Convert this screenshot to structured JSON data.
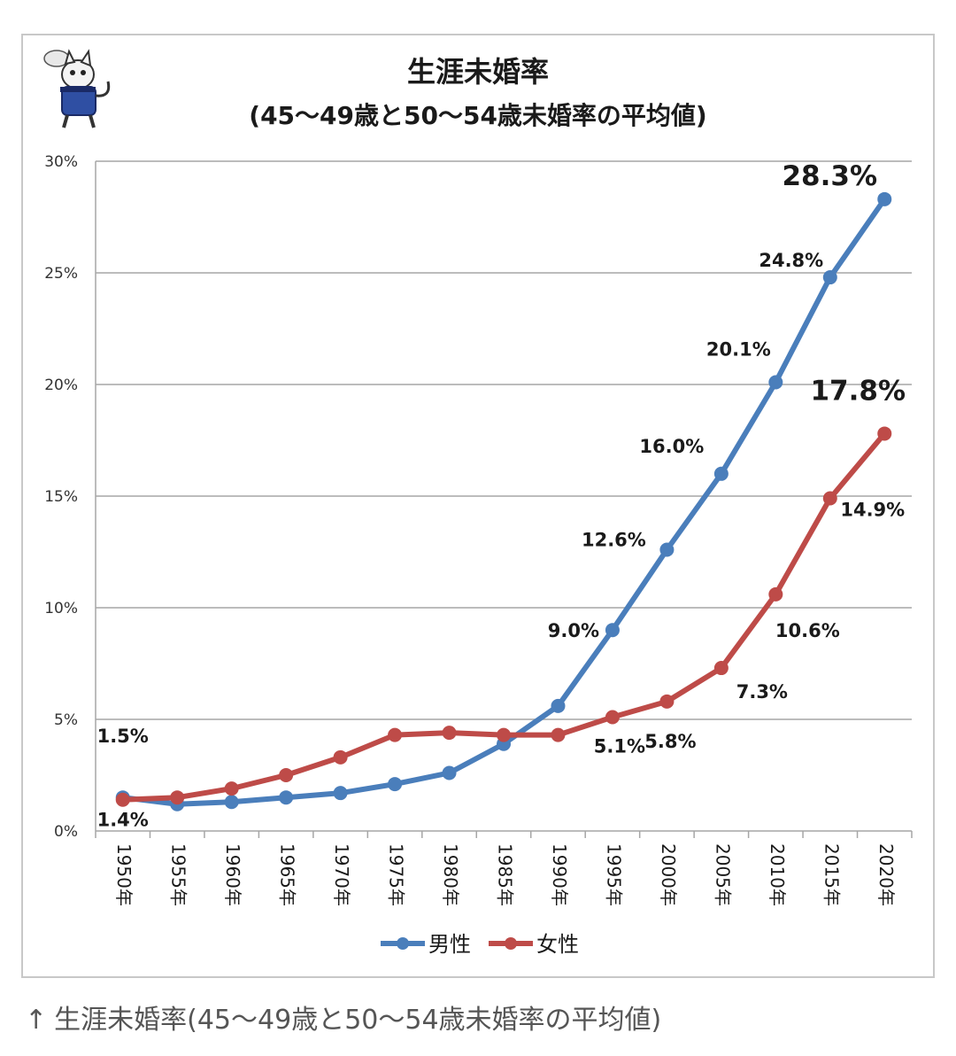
{
  "caption": {
    "arrow": "↑",
    "text": "生涯未婚率(45〜49歳と50〜54歳未婚率の平均値)"
  },
  "colors": {
    "male": "#4a7ebb",
    "female": "#be4b48",
    "grid": "#a6a6a6",
    "text": "#1a1a1a"
  },
  "mascot": "cat-mascot-icon",
  "chart_data": {
    "type": "line",
    "title": "生涯未婚率",
    "subtitle": "(45〜49歳と50〜54歳未婚率の平均値)",
    "xlabel": "",
    "ylabel": "",
    "ylim": [
      0,
      30
    ],
    "yticks": [
      {
        "value": 0,
        "label": "0%"
      },
      {
        "value": 5,
        "label": "5%"
      },
      {
        "value": 10,
        "label": "10%"
      },
      {
        "value": 15,
        "label": "15%"
      },
      {
        "value": 20,
        "label": "20%"
      },
      {
        "value": 25,
        "label": "25%"
      },
      {
        "value": 30,
        "label": "30%"
      }
    ],
    "grid": true,
    "legend": "bottom",
    "categories": [
      "1950年",
      "1955年",
      "1960年",
      "1965年",
      "1970年",
      "1975年",
      "1980年",
      "1985年",
      "1990年",
      "1995年",
      "2000年",
      "2005年",
      "2010年",
      "2015年",
      "2020年"
    ],
    "series": [
      {
        "name": "男性",
        "key": "male",
        "values": [
          1.5,
          1.2,
          1.3,
          1.5,
          1.7,
          2.1,
          2.6,
          3.9,
          5.6,
          9.0,
          12.6,
          16.0,
          20.1,
          24.8,
          28.3
        ],
        "labels": [
          {
            "index": 0,
            "text": "1.5%"
          },
          {
            "index": 9,
            "text": "9.0%"
          },
          {
            "index": 10,
            "text": "12.6%"
          },
          {
            "index": 11,
            "text": "16.0%"
          },
          {
            "index": 12,
            "text": "20.1%"
          },
          {
            "index": 13,
            "text": "24.8%"
          },
          {
            "index": 14,
            "text": "28.3%",
            "emphasis": true
          }
        ]
      },
      {
        "name": "女性",
        "key": "female",
        "values": [
          1.4,
          1.5,
          1.9,
          2.5,
          3.3,
          4.3,
          4.4,
          4.3,
          4.3,
          5.1,
          5.8,
          7.3,
          10.6,
          14.9,
          17.8
        ],
        "labels": [
          {
            "index": 0,
            "text": "1.4%"
          },
          {
            "index": 9,
            "text": "5.1%"
          },
          {
            "index": 10,
            "text": "5.8%"
          },
          {
            "index": 11,
            "text": "7.3%"
          },
          {
            "index": 12,
            "text": "10.6%"
          },
          {
            "index": 13,
            "text": "14.9%"
          },
          {
            "index": 14,
            "text": "17.8%",
            "emphasis": true
          }
        ]
      }
    ]
  }
}
